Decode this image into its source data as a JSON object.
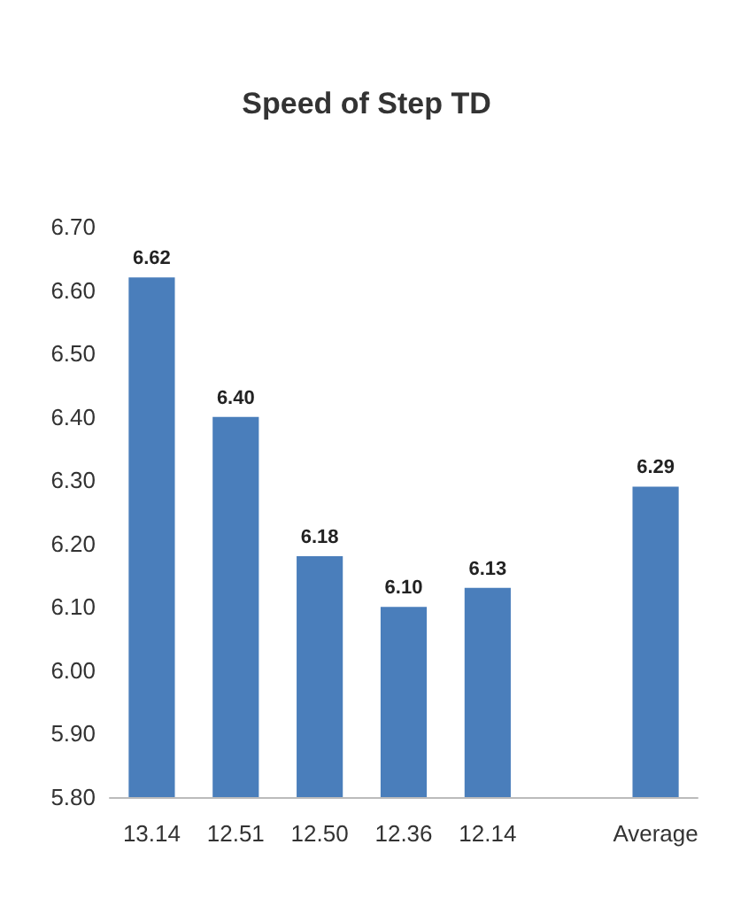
{
  "chart_data": {
    "type": "bar",
    "title": "Speed of Step TD",
    "categories": [
      "13.14",
      "12.51",
      "12.50",
      "12.36",
      "12.14",
      null,
      "Average"
    ],
    "values": [
      6.62,
      6.4,
      6.18,
      6.1,
      6.13,
      null,
      6.29
    ],
    "value_labels": [
      "6.62",
      "6.40",
      "6.18",
      "6.10",
      "6.13",
      null,
      "6.29"
    ],
    "color": "#4a7ebb",
    "ylim": [
      5.8,
      6.7
    ],
    "yticks": [
      {
        "value": 5.8,
        "label": "5.80"
      },
      {
        "value": 5.9,
        "label": "5.90"
      },
      {
        "value": 6.0,
        "label": "6.00"
      },
      {
        "value": 6.1,
        "label": "6.10"
      },
      {
        "value": 6.2,
        "label": "6.20"
      },
      {
        "value": 6.3,
        "label": "6.30"
      },
      {
        "value": 6.4,
        "label": "6.40"
      },
      {
        "value": 6.5,
        "label": "6.50"
      },
      {
        "value": 6.6,
        "label": "6.60"
      },
      {
        "value": 6.7,
        "label": "6.70"
      }
    ]
  }
}
